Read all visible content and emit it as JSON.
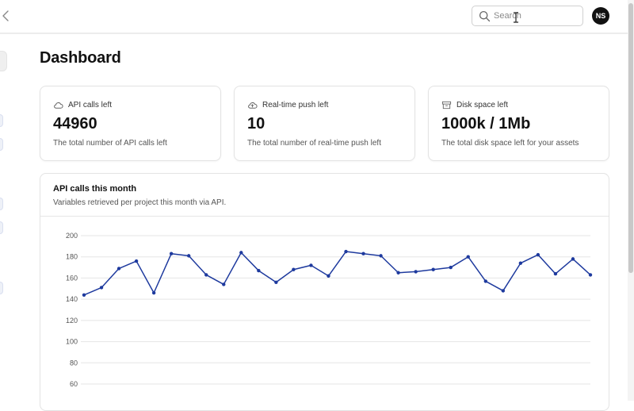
{
  "header": {
    "search_placeholder": "Search",
    "avatar_initials": "NS"
  },
  "page": {
    "title": "Dashboard"
  },
  "stats": [
    {
      "label": "API calls left",
      "value": "44960",
      "description": "The total number of API calls left",
      "icon": "cloud-icon"
    },
    {
      "label": "Real-time push left",
      "value": "10",
      "description": "The total number of real-time push left",
      "icon": "cloud-upload-icon"
    },
    {
      "label": "Disk space left",
      "value": "1000k / 1Mb",
      "description": "The total disk space left for your assets",
      "icon": "archive-icon"
    }
  ],
  "chart": {
    "title": "API calls this month",
    "subtitle": "Variables retrieved per project this month via API."
  },
  "colors": {
    "line": "#1e3a9e",
    "grid": "#e5e5e5"
  },
  "chart_data": {
    "type": "line",
    "title": "API calls this month",
    "xlabel": "",
    "ylabel": "",
    "ylim": [
      60,
      200
    ],
    "yticks": [
      200,
      180,
      160,
      140,
      120,
      100,
      80,
      60
    ],
    "x": [
      1,
      2,
      3,
      4,
      5,
      6,
      7,
      8,
      9,
      10,
      11,
      12,
      13,
      14,
      15,
      16,
      17,
      18,
      19,
      20,
      21,
      22,
      23,
      24,
      25,
      26,
      27,
      28,
      29,
      30
    ],
    "series": [
      {
        "name": "API calls",
        "values": [
          144,
          151,
          169,
          176,
          146,
          183,
          181,
          163,
          154,
          184,
          167,
          156,
          168,
          172,
          162,
          185,
          183,
          181,
          165,
          166,
          168,
          170,
          180,
          157,
          148,
          174,
          182,
          164,
          178,
          163
        ]
      }
    ],
    "grid": true
  }
}
